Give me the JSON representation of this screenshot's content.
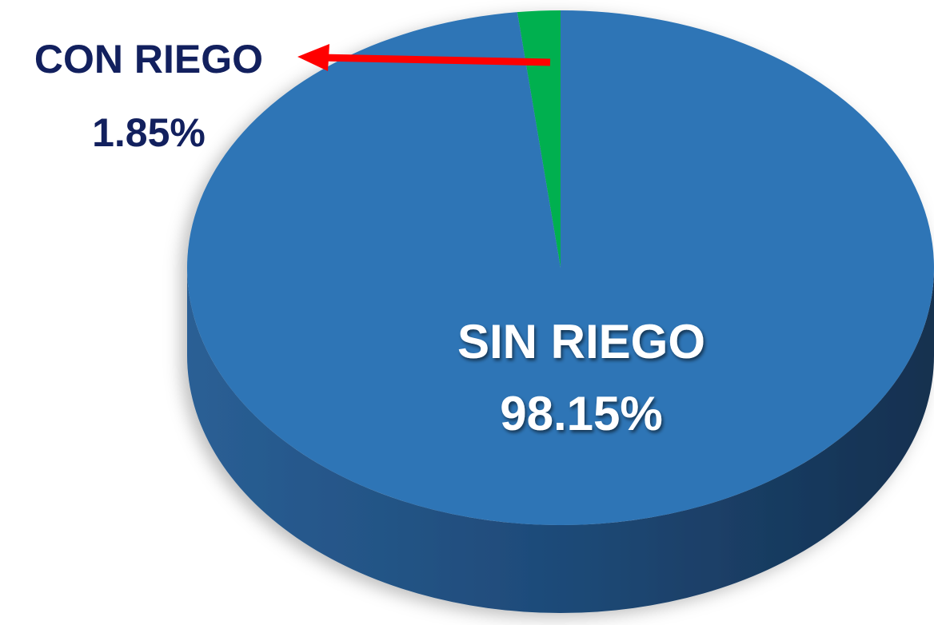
{
  "chart_data": {
    "type": "pie",
    "categories": [
      "CON RIEGO",
      "SIN RIEGO"
    ],
    "values": [
      1.85,
      98.15
    ],
    "value_labels": [
      "1.85%",
      "98.15%"
    ],
    "colors": [
      "#00b050",
      "#2e75b6"
    ]
  }
}
